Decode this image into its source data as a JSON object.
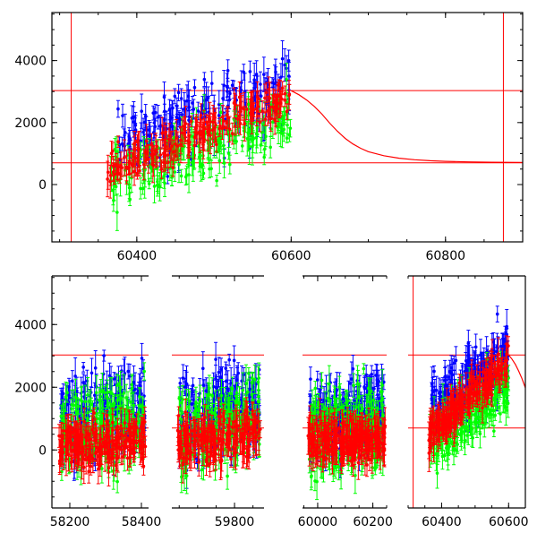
{
  "chart_data": [
    {
      "type": "scatter",
      "title": "",
      "xlabel": "",
      "ylabel": "",
      "xlim": [
        60290,
        60900
      ],
      "ylim": [
        -1850,
        5550
      ],
      "x_ticks": [
        60400,
        60600,
        60800
      ],
      "y_ticks": [
        0,
        2000,
        4000
      ],
      "grid": false,
      "error_bars": true,
      "vertical_lines": [
        60315,
        60875
      ],
      "horizontal_lines": [
        700,
        3030
      ],
      "model_curve": {
        "color": "#ff0000",
        "x": [
          60600,
          60610,
          60620,
          60630,
          60640,
          60650,
          60660,
          60670,
          60680,
          60690,
          60700,
          60720,
          60740,
          60760,
          60780,
          60800,
          60830,
          60860,
          60900
        ],
        "y": [
          3030,
          2900,
          2730,
          2520,
          2270,
          1980,
          1720,
          1490,
          1310,
          1170,
          1060,
          930,
          850,
          800,
          770,
          750,
          730,
          720,
          710
        ]
      },
      "series": [
        {
          "color": "#0000ff",
          "segments": [
            {
              "x_start": 60370,
              "x_end": 60598,
              "y_start": 1300,
              "y_end": 3100,
              "spread": 1000
            }
          ]
        },
        {
          "color": "#00ff00",
          "segments": [
            {
              "x_start": 60365,
              "x_end": 60600,
              "y_start": 200,
              "y_end": 2100,
              "spread": 850
            }
          ]
        },
        {
          "color": "#ff0000",
          "segments": [
            {
              "x_start": 60362,
              "x_end": 60600,
              "y_start": 450,
              "y_end": 2900,
              "spread": 500
            }
          ]
        }
      ]
    },
    {
      "type": "scatter",
      "title": "",
      "xlabel": "",
      "ylabel": "",
      "broken_x_axis": true,
      "ylim": [
        -1850,
        5550
      ],
      "y_ticks": [
        0,
        2000,
        4000
      ],
      "grid": false,
      "error_bars": true,
      "horizontal_lines": [
        700,
        3030
      ],
      "panels": [
        {
          "xlim": [
            58150,
            58420
          ],
          "x_ticks": [
            58200,
            58400
          ],
          "vertical_lines": []
        },
        {
          "xlim": [
            59630,
            59880
          ],
          "x_ticks": [
            59800
          ],
          "vertical_lines": []
        },
        {
          "xlim": [
            59945,
            60250
          ],
          "x_ticks": [
            60000,
            60200
          ],
          "vertical_lines": []
        },
        {
          "xlim": [
            60300,
            60650
          ],
          "x_ticks": [
            60400,
            60600
          ],
          "vertical_lines": [
            60315
          ],
          "model_curve_from": 60600
        }
      ],
      "series": [
        {
          "color": "#0000ff",
          "segments": [
            {
              "x_start": 58175,
              "x_end": 58410,
              "y_start": 900,
              "y_end": 1400,
              "spread": 1300
            },
            {
              "x_start": 59650,
              "x_end": 59868,
              "y_start": 900,
              "y_end": 1600,
              "spread": 1300
            },
            {
              "x_start": 59970,
              "x_end": 60240,
              "y_start": 900,
              "y_end": 1400,
              "spread": 1200
            },
            {
              "x_start": 60370,
              "x_end": 60598,
              "y_start": 1300,
              "y_end": 3100,
              "spread": 1000
            }
          ]
        },
        {
          "color": "#00ff00",
          "segments": [
            {
              "x_start": 58175,
              "x_end": 58410,
              "y_start": 500,
              "y_end": 900,
              "spread": 1300
            },
            {
              "x_start": 59650,
              "x_end": 59868,
              "y_start": 500,
              "y_end": 1000,
              "spread": 1200
            },
            {
              "x_start": 59970,
              "x_end": 60240,
              "y_start": 500,
              "y_end": 900,
              "spread": 1200
            },
            {
              "x_start": 60365,
              "x_end": 60600,
              "y_start": 200,
              "y_end": 2100,
              "spread": 850
            }
          ]
        },
        {
          "color": "#ff0000",
          "segments": [
            {
              "x_start": 58170,
              "x_end": 58412,
              "y_start": 100,
              "y_end": 300,
              "spread": 650
            },
            {
              "x_start": 59645,
              "x_end": 59870,
              "y_start": 200,
              "y_end": 600,
              "spread": 650
            },
            {
              "x_start": 59965,
              "x_end": 60245,
              "y_start": 300,
              "y_end": 300,
              "spread": 600
            },
            {
              "x_start": 60362,
              "x_end": 60600,
              "y_start": 450,
              "y_end": 2900,
              "spread": 500
            }
          ]
        }
      ]
    }
  ]
}
